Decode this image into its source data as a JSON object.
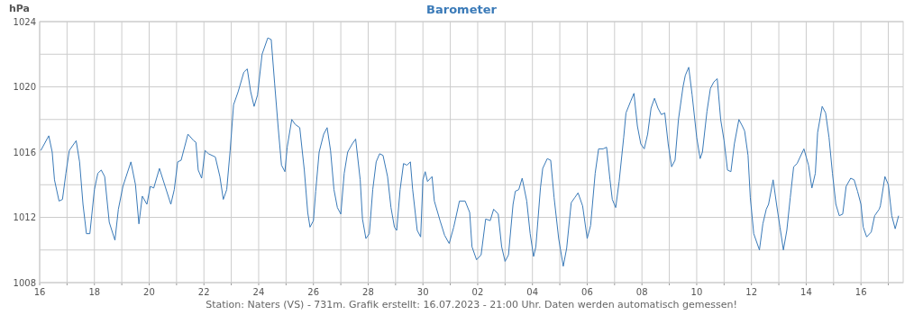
{
  "chart_data": {
    "type": "line",
    "title": "Barometer",
    "ylabel": "hPa",
    "annotations": [
      "Station: Naters (VS) - 731m. Grafik erstellt: 16.07.2023 - 21:00 Uhr. Daten werden automatisch gemessen!"
    ],
    "color": "#3a7ab8",
    "grid": true,
    "marker": "none",
    "line_style": "solid",
    "xlim": [
      "2023-06-16T00:00",
      "2023-07-17T13:00"
    ],
    "xticks": [
      {
        "value": "2023-06-16T00:00",
        "label": "16"
      },
      {
        "value": "2023-06-17T00:00",
        "label": null
      },
      {
        "value": "2023-06-18T00:00",
        "label": "18"
      },
      {
        "value": "2023-06-19T00:00",
        "label": null
      },
      {
        "value": "2023-06-20T00:00",
        "label": "20"
      },
      {
        "value": "2023-06-21T00:00",
        "label": null
      },
      {
        "value": "2023-06-22T00:00",
        "label": "22"
      },
      {
        "value": "2023-06-23T00:00",
        "label": null
      },
      {
        "value": "2023-06-24T00:00",
        "label": "24"
      },
      {
        "value": "2023-06-25T00:00",
        "label": null
      },
      {
        "value": "2023-06-26T00:00",
        "label": "26"
      },
      {
        "value": "2023-06-27T00:00",
        "label": null
      },
      {
        "value": "2023-06-28T00:00",
        "label": "28"
      },
      {
        "value": "2023-06-29T00:00",
        "label": null
      },
      {
        "value": "2023-06-30T00:00",
        "label": "30"
      },
      {
        "value": "2023-07-01T00:00",
        "label": null
      },
      {
        "value": "2023-07-02T00:00",
        "label": "02"
      },
      {
        "value": "2023-07-03T00:00",
        "label": null
      },
      {
        "value": "2023-07-04T00:00",
        "label": "04"
      },
      {
        "value": "2023-07-05T00:00",
        "label": null
      },
      {
        "value": "2023-07-06T00:00",
        "label": "06"
      },
      {
        "value": "2023-07-07T00:00",
        "label": null
      },
      {
        "value": "2023-07-08T00:00",
        "label": "08"
      },
      {
        "value": "2023-07-09T00:00",
        "label": null
      },
      {
        "value": "2023-07-10T00:00",
        "label": "10"
      },
      {
        "value": "2023-07-11T00:00",
        "label": null
      },
      {
        "value": "2023-07-12T00:00",
        "label": "12"
      },
      {
        "value": "2023-07-13T00:00",
        "label": null
      },
      {
        "value": "2023-07-14T00:00",
        "label": "14"
      },
      {
        "value": "2023-07-15T00:00",
        "label": null
      },
      {
        "value": "2023-07-16T00:00",
        "label": "16"
      },
      {
        "value": "2023-07-17T00:00",
        "label": null
      }
    ],
    "ylim": [
      1008,
      1024
    ],
    "yticks": [
      1008,
      {
        "value": 1010,
        "label": null
      },
      1012,
      {
        "value": 1014,
        "label": null
      },
      1016,
      {
        "value": 1018,
        "label": null
      },
      1020,
      {
        "value": 1022,
        "label": null
      },
      1024
    ],
    "x": [
      "2023-06-16T01:00",
      "2023-06-16T08:00",
      "2023-06-16T11:00",
      "2023-06-16T13:00",
      "2023-06-16T17:00",
      "2023-06-16T20:00",
      "2023-06-16T23:00",
      "2023-06-17T02:00",
      "2023-06-17T08:00",
      "2023-06-17T11:00",
      "2023-06-17T14:00",
      "2023-06-17T17:00",
      "2023-06-17T20:00",
      "2023-06-18T00:00",
      "2023-06-18T03:00",
      "2023-06-18T06:00",
      "2023-06-18T09:00",
      "2023-06-18T13:00",
      "2023-06-18T18:00",
      "2023-06-18T21:00",
      "2023-06-19T01:00",
      "2023-06-19T08:00",
      "2023-06-19T12:00",
      "2023-06-19T15:00",
      "2023-06-19T18:00",
      "2023-06-19T22:00",
      "2023-06-20T01:00",
      "2023-06-20T04:00",
      "2023-06-20T09:00",
      "2023-06-20T14:00",
      "2023-06-20T19:00",
      "2023-06-20T22:00",
      "2023-06-21T01:00",
      "2023-06-21T04:00",
      "2023-06-21T10:00",
      "2023-06-21T15:00",
      "2023-06-21T17:00",
      "2023-06-21T19:00",
      "2023-06-21T22:00",
      "2023-06-22T01:00",
      "2023-06-22T04:00",
      "2023-06-22T10:00",
      "2023-06-22T14:00",
      "2023-06-22T17:00",
      "2023-06-22T20:00",
      "2023-06-22T23:00",
      "2023-06-23T02:00",
      "2023-06-23T06:00",
      "2023-06-23T11:00",
      "2023-06-23T14:00",
      "2023-06-23T17:00",
      "2023-06-23T20:00",
      "2023-06-23T23:00",
      "2023-06-24T03:00",
      "2023-06-24T08:00",
      "2023-06-24T11:00",
      "2023-06-24T14:00",
      "2023-06-24T17:00",
      "2023-06-24T20:00",
      "2023-06-24T23:00",
      "2023-06-25T01:00",
      "2023-06-25T05:00",
      "2023-06-25T08:00",
      "2023-06-25T12:00",
      "2023-06-25T16:00",
      "2023-06-25T19:00",
      "2023-06-25T21:00",
      "2023-06-26T00:00",
      "2023-06-26T02:00",
      "2023-06-26T05:00",
      "2023-06-26T09:00",
      "2023-06-26T12:00",
      "2023-06-26T15:00",
      "2023-06-26T18:00",
      "2023-06-26T21:00",
      "2023-06-27T00:00",
      "2023-06-27T03:00",
      "2023-06-27T06:00",
      "2023-06-27T10:00",
      "2023-06-27T13:00",
      "2023-06-27T17:00",
      "2023-06-27T19:00",
      "2023-06-27T22:00",
      "2023-06-28T01:00",
      "2023-06-28T04:00",
      "2023-06-28T07:00",
      "2023-06-28T10:00",
      "2023-06-28T13:00",
      "2023-06-28T17:00",
      "2023-06-28T20:00",
      "2023-06-28T23:00",
      "2023-06-29T01:00",
      "2023-06-29T04:00",
      "2023-06-29T07:00",
      "2023-06-29T10:00",
      "2023-06-29T13:00",
      "2023-06-29T15:00",
      "2023-06-29T19:00",
      "2023-06-29T22:00",
      "2023-06-30T00:00",
      "2023-06-30T02:00",
      "2023-06-30T04:00",
      "2023-06-30T08:00",
      "2023-06-30T10:00",
      "2023-06-30T15:00",
      "2023-06-30T19:00",
      "2023-06-30T23:00",
      "2023-07-01T03:00",
      "2023-07-01T08:00",
      "2023-07-01T13:00",
      "2023-07-01T17:00",
      "2023-07-01T19:00",
      "2023-07-01T23:00",
      "2023-07-02T03:00",
      "2023-07-02T07:00",
      "2023-07-02T11:00",
      "2023-07-02T14:00",
      "2023-07-02T18:00",
      "2023-07-02T21:00",
      "2023-07-03T00:00",
      "2023-07-03T03:00",
      "2023-07-03T07:00",
      "2023-07-03T09:00",
      "2023-07-03T12:00",
      "2023-07-03T15:00",
      "2023-07-03T19:00",
      "2023-07-03T22:00",
      "2023-07-04T01:00",
      "2023-07-04T03:00",
      "2023-07-04T07:00",
      "2023-07-04T09:00",
      "2023-07-04T13:00",
      "2023-07-04T16:00",
      "2023-07-04T19:00",
      "2023-07-04T23:00",
      "2023-07-05T03:00",
      "2023-07-05T06:00",
      "2023-07-05T10:00",
      "2023-07-05T13:00",
      "2023-07-05T16:00",
      "2023-07-05T20:00",
      "2023-07-06T00:00",
      "2023-07-06T03:00",
      "2023-07-06T07:00",
      "2023-07-06T10:00",
      "2023-07-06T14:00",
      "2023-07-06T17:00",
      "2023-07-06T20:00",
      "2023-07-06T22:00",
      "2023-07-07T01:00",
      "2023-07-07T04:00",
      "2023-07-07T08:00",
      "2023-07-07T10:00",
      "2023-07-07T14:00",
      "2023-07-07T17:00",
      "2023-07-07T20:00",
      "2023-07-07T23:00",
      "2023-07-08T02:00",
      "2023-07-08T05:00",
      "2023-07-08T08:00",
      "2023-07-08T11:00",
      "2023-07-08T14:00",
      "2023-07-08T17:00",
      "2023-07-08T20:00",
      "2023-07-08T23:00",
      "2023-07-09T02:00",
      "2023-07-09T05:00",
      "2023-07-09T08:00",
      "2023-07-09T12:00",
      "2023-07-09T14:00",
      "2023-07-09T17:00",
      "2023-07-09T20:00",
      "2023-07-10T00:00",
      "2023-07-10T03:00",
      "2023-07-10T05:00",
      "2023-07-10T09:00",
      "2023-07-10T12:00",
      "2023-07-10T15:00",
      "2023-07-10T18:00",
      "2023-07-10T21:00",
      "2023-07-11T00:00",
      "2023-07-11T03:00",
      "2023-07-11T06:00",
      "2023-07-11T09:00",
      "2023-07-11T13:00",
      "2023-07-11T16:00",
      "2023-07-11T18:00",
      "2023-07-11T21:00",
      "2023-07-11T23:00",
      "2023-07-12T02:00",
      "2023-07-12T07:00",
      "2023-07-12T10:00",
      "2023-07-12T13:00",
      "2023-07-12T15:00",
      "2023-07-12T19:00",
      "2023-07-12T22:00",
      "2023-07-13T01:00",
      "2023-07-13T04:00",
      "2023-07-13T07:00",
      "2023-07-13T10:00",
      "2023-07-13T13:00",
      "2023-07-13T16:00",
      "2023-07-13T22:00",
      "2023-07-14T02:00",
      "2023-07-14T05:00",
      "2023-07-14T08:00",
      "2023-07-14T10:00",
      "2023-07-14T14:00",
      "2023-07-14T17:00",
      "2023-07-14T20:00",
      "2023-07-14T23:00",
      "2023-07-15T02:00",
      "2023-07-15T05:00",
      "2023-07-15T08:00",
      "2023-07-15T11:00",
      "2023-07-15T15:00",
      "2023-07-15T18:00",
      "2023-07-15T21:00",
      "2023-07-16T00:00",
      "2023-07-16T02:00",
      "2023-07-16T05:00",
      "2023-07-16T09:00",
      "2023-07-16T12:00",
      "2023-07-16T16:00",
      "2023-07-16T17:00",
      "2023-07-16T21:00",
      "2023-07-17T00:00",
      "2023-07-17T03:00",
      "2023-07-17T06:00",
      "2023-07-17T09:00"
    ],
    "values": [
      1016.1,
      1017.0,
      1016.0,
      1014.3,
      1013.0,
      1013.1,
      1014.7,
      1016.1,
      1016.7,
      1015.4,
      1012.8,
      1011.0,
      1011.0,
      1013.7,
      1014.7,
      1014.9,
      1014.5,
      1011.7,
      1010.6,
      1012.5,
      1013.9,
      1015.4,
      1014.0,
      1011.6,
      1013.3,
      1012.8,
      1013.9,
      1013.8,
      1015.0,
      1013.9,
      1012.8,
      1013.7,
      1015.4,
      1015.5,
      1017.1,
      1016.7,
      1016.6,
      1014.9,
      1014.4,
      1016.1,
      1015.9,
      1015.7,
      1014.5,
      1013.1,
      1013.7,
      1016.1,
      1018.9,
      1019.7,
      1020.9,
      1021.1,
      1019.7,
      1018.8,
      1019.5,
      1022.0,
      1023.0,
      1022.9,
      1020.2,
      1017.6,
      1015.2,
      1014.8,
      1016.3,
      1018.0,
      1017.7,
      1017.5,
      1014.9,
      1012.3,
      1011.4,
      1011.8,
      1013.6,
      1016.0,
      1017.1,
      1017.5,
      1016.1,
      1013.7,
      1012.6,
      1012.2,
      1014.7,
      1016.0,
      1016.5,
      1016.8,
      1014.3,
      1011.9,
      1010.7,
      1011.0,
      1013.7,
      1015.4,
      1015.9,
      1015.8,
      1014.5,
      1012.6,
      1011.4,
      1011.2,
      1013.7,
      1015.3,
      1015.2,
      1015.4,
      1013.7,
      1011.2,
      1010.8,
      1014.3,
      1014.8,
      1014.2,
      1014.5,
      1013.0,
      1011.8,
      1010.9,
      1010.4,
      1011.4,
      1013.0,
      1013.0,
      1012.3,
      1010.2,
      1009.4,
      1009.7,
      1011.9,
      1011.8,
      1012.5,
      1012.2,
      1010.2,
      1009.3,
      1009.7,
      1012.8,
      1013.6,
      1013.7,
      1014.4,
      1013.0,
      1011.0,
      1009.6,
      1010.2,
      1013.8,
      1015.0,
      1015.6,
      1015.5,
      1013.2,
      1010.7,
      1009.0,
      1010.1,
      1012.9,
      1013.2,
      1013.5,
      1012.7,
      1010.7,
      1011.5,
      1014.7,
      1016.2,
      1016.2,
      1016.3,
      1014.3,
      1013.1,
      1012.6,
      1014.2,
      1016.9,
      1018.4,
      1019.1,
      1019.6,
      1017.6,
      1016.5,
      1016.2,
      1017.1,
      1018.7,
      1019.3,
      1018.7,
      1018.3,
      1018.4,
      1016.5,
      1015.1,
      1015.5,
      1018.0,
      1020.0,
      1020.7,
      1021.2,
      1019.5,
      1016.9,
      1015.6,
      1016.0,
      1018.5,
      1019.9,
      1020.3,
      1020.5,
      1018.0,
      1016.7,
      1014.9,
      1014.8,
      1016.5,
      1018.0,
      1017.6,
      1017.3,
      1015.8,
      1013.2,
      1011.0,
      1010.0,
      1011.6,
      1012.5,
      1012.8,
      1014.3,
      1012.8,
      1011.4,
      1010.0,
      1011.2,
      1013.2,
      1015.1,
      1015.3,
      1016.2,
      1015.2,
      1013.8,
      1014.7,
      1017.2,
      1018.8,
      1018.4,
      1016.9,
      1014.7,
      1012.8,
      1012.1,
      1012.2,
      1013.9,
      1014.4,
      1014.3,
      1013.6,
      1012.8,
      1011.4,
      1010.8,
      1011.1,
      1012.1,
      1012.5,
      1012.7,
      1014.5,
      1014.0,
      1012.1,
      1011.3,
      1012.1
    ]
  }
}
